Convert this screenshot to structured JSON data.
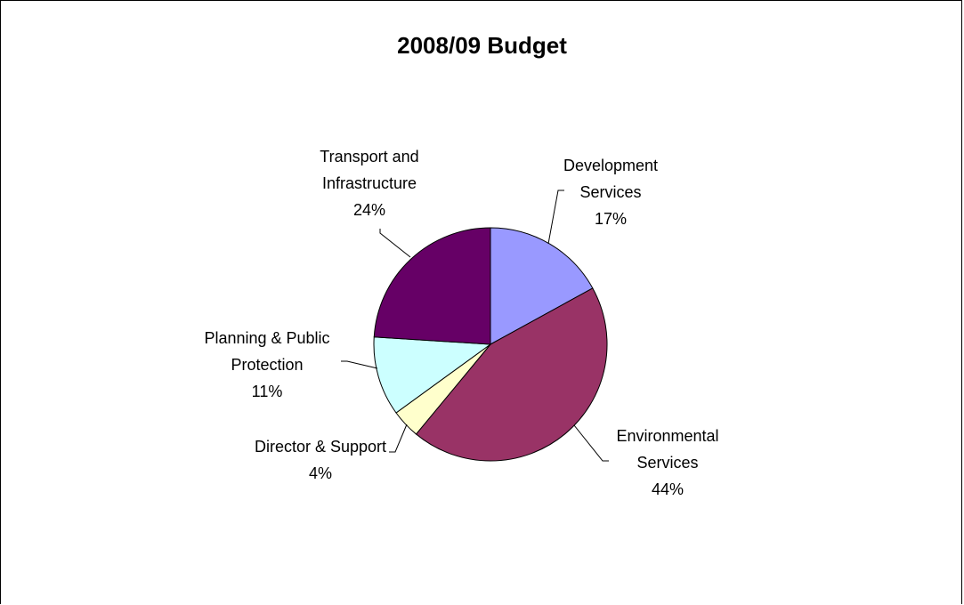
{
  "chart_data": {
    "type": "pie",
    "title": "2008/09 Budget",
    "slices": [
      {
        "label_lines": [
          "Development",
          "Services"
        ],
        "pct_text": "17%",
        "value": 17,
        "color": "#9999ff"
      },
      {
        "label_lines": [
          "Environmental",
          "Services"
        ],
        "pct_text": "44%",
        "value": 44,
        "color": "#993366"
      },
      {
        "label_lines": [
          "Director & Support"
        ],
        "pct_text": "4%",
        "value": 4,
        "color": "#ffffcc"
      },
      {
        "label_lines": [
          "Planning & Public",
          "Protection"
        ],
        "pct_text": "11%",
        "value": 11,
        "color": "#ccffff"
      },
      {
        "label_lines": [
          "Transport and",
          "Infrastructure"
        ],
        "pct_text": "24%",
        "value": 24,
        "color": "#660066"
      }
    ]
  }
}
